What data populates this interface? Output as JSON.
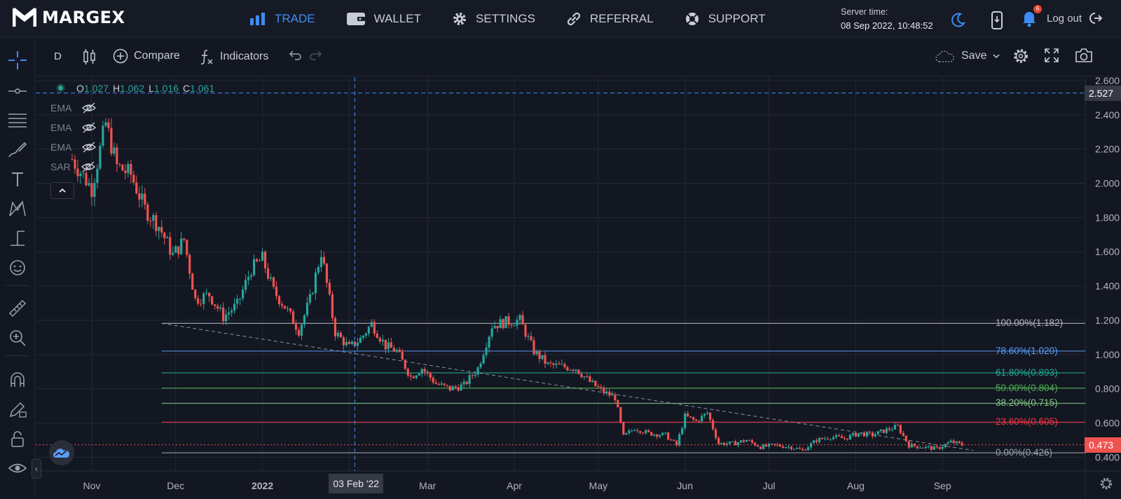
{
  "app": {
    "logo_text": "MARGEX",
    "nav": [
      {
        "label": "TRADE",
        "icon": "bar-chart-icon",
        "active": true
      },
      {
        "label": "WALLET",
        "icon": "wallet-icon",
        "active": false
      },
      {
        "label": "SETTINGS",
        "icon": "gear-icon",
        "active": false
      },
      {
        "label": "REFERRAL",
        "icon": "link-icon",
        "active": false
      },
      {
        "label": "SUPPORT",
        "icon": "lifebuoy-icon",
        "active": false
      }
    ],
    "server_time_label": "Server time:",
    "server_time_value": "08 Sep 2022, 10:48:52",
    "notification_count": "6",
    "logout_label": "Log out",
    "accent": "#3d8cf5"
  },
  "toolbar": {
    "interval": "D",
    "compare_label": "Compare",
    "indicators_label": "Indicators",
    "save_label": "Save"
  },
  "legend": {
    "o_label": "O",
    "o_value": "1.027",
    "h_label": "H",
    "h_value": "1.062",
    "l_label": "L",
    "l_value": "1.016",
    "c_label": "C",
    "c_value": "1.061",
    "indicators": [
      "EMA",
      "EMA",
      "EMA",
      "SAR"
    ]
  },
  "chart_data": {
    "type": "candlestick",
    "x_ticks": [
      "Nov",
      "Dec",
      "2022",
      "Mar",
      "Apr",
      "May",
      "Jun",
      "Jul",
      "Aug",
      "Sep"
    ],
    "y_ticks": [
      "2.600",
      "2.400",
      "2.200",
      "2.000",
      "1.800",
      "1.600",
      "1.400",
      "1.200",
      "1.000",
      "0.800",
      "0.600",
      "0.400"
    ],
    "ylim": [
      0.32,
      2.62
    ],
    "crosshair_price": "2.527",
    "crosshair_date": "03 Feb '22",
    "last_price": "0.473",
    "up_color": "#26a69a",
    "down_color": "#ef5350",
    "fib_levels": [
      {
        "label": "100.00%(1.182)",
        "value": 1.182,
        "color": "#b2b5be"
      },
      {
        "label": "78.60%(1.020)",
        "value": 1.02,
        "color": "#5b9cf6"
      },
      {
        "label": "61.80%(0.893)",
        "value": 0.893,
        "color": "#22ab94"
      },
      {
        "label": "50.00%(0.804)",
        "value": 0.804,
        "color": "#4caf50"
      },
      {
        "label": "38.20%(0.715)",
        "value": 0.715,
        "color": "#81c784"
      },
      {
        "label": "23.60%(0.605)",
        "value": 0.605,
        "color": "#f23645"
      },
      {
        "label": "0.00%(0.426)",
        "value": 0.426,
        "color": "#9ba1b0"
      }
    ],
    "price_path": [
      [
        "2021-10-25",
        2.14
      ],
      [
        "2021-11-01",
        1.97
      ],
      [
        "2021-11-06",
        2.35
      ],
      [
        "2021-11-10",
        2.1
      ],
      [
        "2021-11-15",
        2.05
      ],
      [
        "2021-11-20",
        1.85
      ],
      [
        "2021-11-25",
        1.75
      ],
      [
        "2021-11-30",
        1.58
      ],
      [
        "2021-12-04",
        1.67
      ],
      [
        "2021-12-08",
        1.32
      ],
      [
        "2021-12-13",
        1.35
      ],
      [
        "2021-12-18",
        1.22
      ],
      [
        "2021-12-23",
        1.29
      ],
      [
        "2021-12-28",
        1.5
      ],
      [
        "2022-01-01",
        1.56
      ],
      [
        "2022-01-05",
        1.37
      ],
      [
        "2022-01-09",
        1.28
      ],
      [
        "2022-01-14",
        1.14
      ],
      [
        "2022-01-18",
        1.32
      ],
      [
        "2022-01-22",
        1.6
      ],
      [
        "2022-01-27",
        1.13
      ],
      [
        "2022-02-01",
        1.04
      ],
      [
        "2022-02-05",
        1.09
      ],
      [
        "2022-02-09",
        1.18
      ],
      [
        "2022-02-14",
        1.05
      ],
      [
        "2022-02-18",
        1.02
      ],
      [
        "2022-02-23",
        0.87
      ],
      [
        "2022-02-27",
        0.92
      ],
      [
        "2022-03-04",
        0.83
      ],
      [
        "2022-03-09",
        0.8
      ],
      [
        "2022-03-14",
        0.82
      ],
      [
        "2022-03-19",
        0.92
      ],
      [
        "2022-03-24",
        1.17
      ],
      [
        "2022-03-29",
        1.19
      ],
      [
        "2022-04-03",
        1.2
      ],
      [
        "2022-04-08",
        1.02
      ],
      [
        "2022-04-13",
        0.94
      ],
      [
        "2022-04-18",
        0.93
      ],
      [
        "2022-04-23",
        0.92
      ],
      [
        "2022-04-28",
        0.84
      ],
      [
        "2022-05-03",
        0.78
      ],
      [
        "2022-05-07",
        0.75
      ],
      [
        "2022-05-10",
        0.52
      ],
      [
        "2022-05-14",
        0.57
      ],
      [
        "2022-05-19",
        0.54
      ],
      [
        "2022-05-25",
        0.53
      ],
      [
        "2022-05-29",
        0.47
      ],
      [
        "2022-06-01",
        0.64
      ],
      [
        "2022-06-05",
        0.61
      ],
      [
        "2022-06-09",
        0.66
      ],
      [
        "2022-06-13",
        0.48
      ],
      [
        "2022-06-18",
        0.48
      ],
      [
        "2022-06-23",
        0.5
      ],
      [
        "2022-06-28",
        0.46
      ],
      [
        "2022-07-03",
        0.47
      ],
      [
        "2022-07-09",
        0.46
      ],
      [
        "2022-07-13",
        0.44
      ],
      [
        "2022-07-18",
        0.5
      ],
      [
        "2022-07-23",
        0.52
      ],
      [
        "2022-07-28",
        0.51
      ],
      [
        "2022-08-02",
        0.54
      ],
      [
        "2022-08-07",
        0.53
      ],
      [
        "2022-08-12",
        0.56
      ],
      [
        "2022-08-16",
        0.58
      ],
      [
        "2022-08-20",
        0.47
      ],
      [
        "2022-08-25",
        0.46
      ],
      [
        "2022-08-30",
        0.45
      ],
      [
        "2022-09-04",
        0.49
      ],
      [
        "2022-09-08",
        0.473
      ]
    ]
  }
}
